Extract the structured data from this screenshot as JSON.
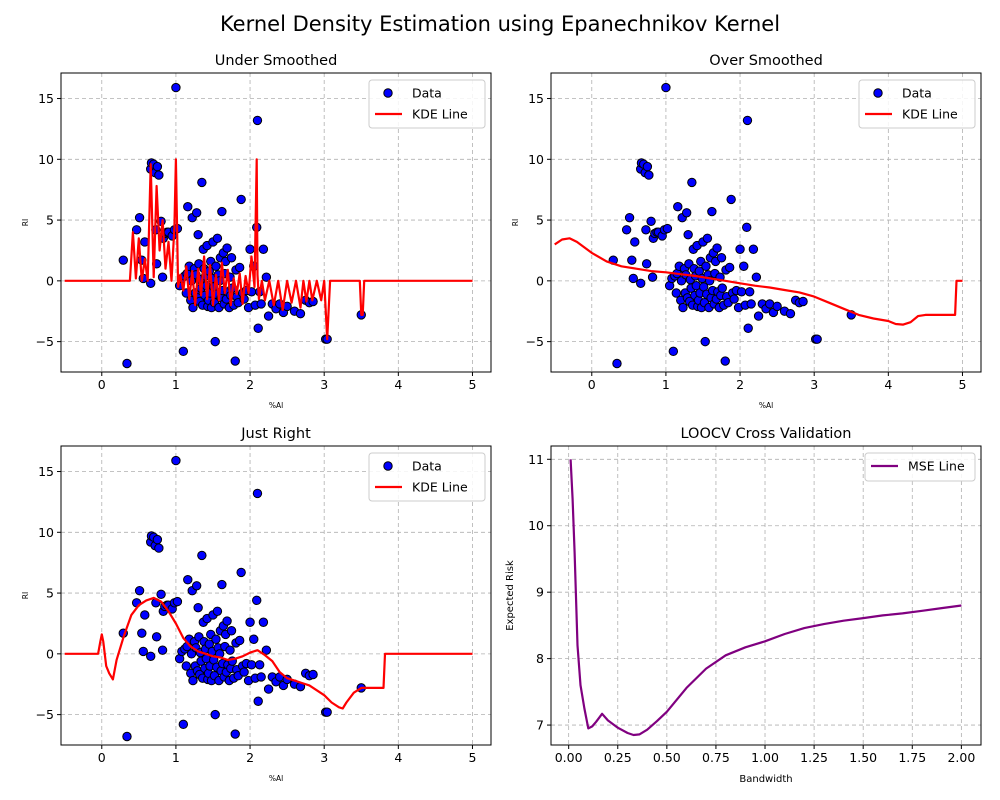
{
  "figure": {
    "suptitle": "Kernel Density Estimation using Epanechnikov Kernel"
  },
  "chart_data": [
    {
      "type": "scatter+line",
      "title": "Under Smoothed",
      "xlabel": "%Al",
      "ylabel": "RI",
      "xlim": [
        -0.55,
        5.25
      ],
      "ylim": [
        -7.5,
        17.1
      ],
      "xticks": [
        0,
        1,
        2,
        3,
        4,
        5
      ],
      "yticks": [
        -5,
        0,
        5,
        10,
        15
      ],
      "grid": true,
      "legend": {
        "position": "top-right",
        "entries": [
          "Data",
          "KDE Line"
        ]
      },
      "scatter": {
        "name": "Data",
        "points": [
          [
            0.29,
            1.7
          ],
          [
            0.34,
            -6.8
          ],
          [
            0.47,
            4.2
          ],
          [
            0.51,
            5.2
          ],
          [
            0.54,
            1.7
          ],
          [
            0.56,
            0.2
          ],
          [
            0.58,
            3.2
          ],
          [
            0.66,
            -0.2
          ],
          [
            0.66,
            9.2
          ],
          [
            0.67,
            9.7
          ],
          [
            0.7,
            9.6
          ],
          [
            0.72,
            8.9
          ],
          [
            0.75,
            9.4
          ],
          [
            0.77,
            8.7
          ],
          [
            0.73,
            4.2
          ],
          [
            0.74,
            1.4
          ],
          [
            0.8,
            4.9
          ],
          [
            0.82,
            0.3
          ],
          [
            0.83,
            3.5
          ],
          [
            0.85,
            3.9
          ],
          [
            0.88,
            4.0
          ],
          [
            0.9,
            4.0
          ],
          [
            0.95,
            3.7
          ],
          [
            0.98,
            4.2
          ],
          [
            1.0,
            15.9
          ],
          [
            1.02,
            4.3
          ],
          [
            1.05,
            -0.4
          ],
          [
            1.08,
            0.2
          ],
          [
            1.1,
            -5.8
          ],
          [
            1.12,
            0.4
          ],
          [
            1.14,
            -1.0
          ],
          [
            1.15,
            0.6
          ],
          [
            1.16,
            6.1
          ],
          [
            1.18,
            1.2
          ],
          [
            1.2,
            -1.6
          ],
          [
            1.21,
            0.0
          ],
          [
            1.22,
            5.2
          ],
          [
            1.23,
            -2.2
          ],
          [
            1.25,
            1.0
          ],
          [
            1.26,
            -1.0
          ],
          [
            1.27,
            0.5
          ],
          [
            1.28,
            5.6
          ],
          [
            1.29,
            -1.4
          ],
          [
            1.3,
            3.8
          ],
          [
            1.31,
            1.4
          ],
          [
            1.32,
            -1.7
          ],
          [
            1.33,
            0.1
          ],
          [
            1.34,
            -0.6
          ],
          [
            1.35,
            8.1
          ],
          [
            1.36,
            -2.0
          ],
          [
            1.37,
            2.6
          ],
          [
            1.38,
            1.0
          ],
          [
            1.39,
            -1.2
          ],
          [
            1.4,
            0.4
          ],
          [
            1.41,
            -0.4
          ],
          [
            1.42,
            2.9
          ],
          [
            1.43,
            -2.1
          ],
          [
            1.44,
            -1.6
          ],
          [
            1.45,
            0.8
          ],
          [
            1.46,
            -1.0
          ],
          [
            1.47,
            1.6
          ],
          [
            1.48,
            -2.2
          ],
          [
            1.49,
            0.2
          ],
          [
            1.5,
            3.2
          ],
          [
            1.51,
            -0.5
          ],
          [
            1.52,
            -1.8
          ],
          [
            1.53,
            -5.0
          ],
          [
            1.54,
            1.2
          ],
          [
            1.55,
            -1.1
          ],
          [
            1.56,
            3.5
          ],
          [
            1.57,
            0.5
          ],
          [
            1.58,
            -2.2
          ],
          [
            1.59,
            0.0
          ],
          [
            1.6,
            1.9
          ],
          [
            1.61,
            -1.4
          ],
          [
            1.62,
            5.7
          ],
          [
            1.63,
            -0.8
          ],
          [
            1.64,
            2.3
          ],
          [
            1.65,
            -1.9
          ],
          [
            1.66,
            0.6
          ],
          [
            1.67,
            1.6
          ],
          [
            1.68,
            -1.5
          ],
          [
            1.69,
            2.7
          ],
          [
            1.7,
            -0.9
          ],
          [
            1.72,
            -2.2
          ],
          [
            1.73,
            0.3
          ],
          [
            1.74,
            -1.2
          ],
          [
            1.75,
            1.9
          ],
          [
            1.76,
            -0.6
          ],
          [
            1.78,
            -2.0
          ],
          [
            1.8,
            -6.6
          ],
          [
            1.81,
            0.9
          ],
          [
            1.82,
            -1.3
          ],
          [
            1.84,
            -1.8
          ],
          [
            1.86,
            1.1
          ],
          [
            1.88,
            6.7
          ],
          [
            1.9,
            -1.0
          ],
          [
            1.92,
            -1.5
          ],
          [
            1.95,
            -0.8
          ],
          [
            1.98,
            -2.2
          ],
          [
            2.0,
            2.6
          ],
          [
            2.02,
            -0.9
          ],
          [
            2.05,
            1.2
          ],
          [
            2.07,
            -2.0
          ],
          [
            2.09,
            4.4
          ],
          [
            2.1,
            13.2
          ],
          [
            2.11,
            -3.9
          ],
          [
            2.13,
            -0.9
          ],
          [
            2.15,
            -1.9
          ],
          [
            2.18,
            2.6
          ],
          [
            2.22,
            0.3
          ],
          [
            2.25,
            -2.9
          ],
          [
            2.3,
            -1.9
          ],
          [
            2.35,
            -2.3
          ],
          [
            2.4,
            -1.9
          ],
          [
            2.45,
            -2.6
          ],
          [
            2.5,
            -2.1
          ],
          [
            2.6,
            -2.5
          ],
          [
            2.68,
            -2.7
          ],
          [
            2.75,
            -1.6
          ],
          [
            2.8,
            -1.8
          ],
          [
            2.85,
            -1.7
          ],
          [
            3.02,
            -4.8
          ],
          [
            3.04,
            -4.8
          ],
          [
            3.5,
            -2.8
          ]
        ]
      },
      "line": {
        "name": "KDE Line",
        "x": [
          -0.5,
          0.38,
          0.42,
          0.46,
          0.5,
          0.54,
          0.58,
          0.62,
          0.66,
          0.7,
          0.74,
          0.78,
          0.82,
          0.86,
          0.9,
          0.94,
          0.98,
          1.0,
          1.03,
          1.06,
          1.1,
          1.14,
          1.18,
          1.22,
          1.26,
          1.3,
          1.34,
          1.38,
          1.42,
          1.46,
          1.5,
          1.54,
          1.58,
          1.62,
          1.66,
          1.7,
          1.74,
          1.78,
          1.82,
          1.86,
          1.9,
          1.94,
          1.98,
          2.02,
          2.06,
          2.09,
          2.1,
          2.12,
          2.16,
          2.2,
          2.26,
          2.32,
          2.38,
          2.44,
          2.5,
          2.56,
          2.62,
          2.68,
          2.72,
          2.76,
          2.8,
          2.84,
          2.9,
          2.96,
          3.0,
          3.04,
          3.08,
          3.48,
          3.5,
          3.52,
          3.54,
          5.0
        ],
        "y": [
          0.0,
          0.0,
          4.0,
          0.2,
          3.5,
          0.0,
          1.8,
          0.0,
          9.6,
          0.3,
          7.8,
          2.5,
          5.0,
          1.0,
          3.2,
          0.0,
          4.4,
          10.0,
          -0.5,
          0.5,
          -0.8,
          1.2,
          -1.5,
          0.8,
          -2.0,
          1.0,
          -1.2,
          2.0,
          -1.5,
          1.3,
          -2.0,
          0.5,
          -1.6,
          1.5,
          -1.0,
          0.9,
          -2.0,
          0.2,
          -1.1,
          0.6,
          -1.9,
          0.4,
          -1.0,
          2.0,
          -0.5,
          10.0,
          0.5,
          -1.5,
          0.0,
          -1.6,
          0.0,
          -2.0,
          0.0,
          -2.4,
          0.0,
          -1.8,
          0.0,
          -2.2,
          0.0,
          -1.7,
          0.0,
          -1.6,
          0.0,
          -1.6,
          0.0,
          -4.8,
          0.0,
          0.0,
          -2.8,
          -2.8,
          0.0,
          0.0
        ]
      }
    },
    {
      "type": "scatter+line",
      "title": "Over Smoothed",
      "xlabel": "%Al",
      "ylabel": "RI",
      "xlim": [
        -0.55,
        5.25
      ],
      "ylim": [
        -7.5,
        17.1
      ],
      "xticks": [
        0,
        1,
        2,
        3,
        4,
        5
      ],
      "yticks": [
        -5,
        0,
        5,
        10,
        15
      ],
      "grid": true,
      "legend": {
        "position": "top-right",
        "entries": [
          "Data",
          "KDE Line"
        ]
      },
      "scatter": {
        "name": "Data",
        "points_ref": 0
      },
      "line": {
        "name": "KDE Line",
        "x": [
          -0.5,
          -0.4,
          -0.3,
          -0.2,
          0.0,
          0.2,
          0.4,
          0.6,
          0.8,
          1.0,
          1.2,
          1.4,
          1.6,
          1.8,
          2.0,
          2.2,
          2.4,
          2.6,
          2.8,
          3.0,
          3.2,
          3.4,
          3.6,
          3.8,
          4.0,
          4.1,
          4.2,
          4.3,
          4.4,
          4.5,
          4.9,
          4.92,
          5.0
        ],
        "y": [
          3.0,
          3.4,
          3.5,
          3.2,
          2.3,
          1.6,
          1.2,
          1.0,
          0.8,
          0.7,
          0.55,
          0.4,
          0.2,
          0.0,
          -0.2,
          -0.4,
          -0.55,
          -0.75,
          -0.95,
          -1.3,
          -1.8,
          -2.3,
          -2.8,
          -3.1,
          -3.3,
          -3.55,
          -3.6,
          -3.4,
          -2.9,
          -2.8,
          -2.8,
          0.0,
          0.0
        ]
      }
    },
    {
      "type": "scatter+line",
      "title": "Just Right",
      "xlabel": "%Al",
      "ylabel": "RI",
      "xlim": [
        -0.55,
        5.25
      ],
      "ylim": [
        -7.5,
        17.1
      ],
      "xticks": [
        0,
        1,
        2,
        3,
        4,
        5
      ],
      "yticks": [
        -5,
        0,
        5,
        10,
        15
      ],
      "grid": true,
      "legend": {
        "position": "top-right",
        "entries": [
          "Data",
          "KDE Line"
        ]
      },
      "scatter": {
        "name": "Data",
        "points_ref": 0
      },
      "line": {
        "name": "KDE Line",
        "x": [
          -0.5,
          -0.05,
          -0.02,
          0.0,
          0.02,
          0.06,
          0.1,
          0.15,
          0.2,
          0.3,
          0.4,
          0.5,
          0.6,
          0.7,
          0.8,
          0.9,
          1.0,
          1.1,
          1.2,
          1.3,
          1.4,
          1.5,
          1.6,
          1.7,
          1.8,
          1.9,
          2.0,
          2.1,
          2.2,
          2.3,
          2.4,
          2.5,
          2.6,
          2.7,
          2.8,
          2.9,
          3.0,
          3.1,
          3.2,
          3.25,
          3.3,
          3.4,
          3.5,
          3.8,
          3.82,
          5.0
        ],
        "y": [
          0.0,
          0.0,
          1.0,
          1.6,
          1.0,
          -1.0,
          -1.6,
          -2.1,
          -0.5,
          1.5,
          3.2,
          4.0,
          4.4,
          4.6,
          4.3,
          3.5,
          2.5,
          1.3,
          0.6,
          0.2,
          0.0,
          -0.2,
          -0.3,
          -0.5,
          -0.4,
          -0.2,
          0.1,
          0.3,
          -0.1,
          -0.6,
          -1.5,
          -2.0,
          -2.2,
          -2.4,
          -2.6,
          -3.0,
          -3.4,
          -4.0,
          -4.4,
          -4.5,
          -4.0,
          -3.2,
          -2.8,
          -2.8,
          0.0,
          0.0
        ]
      }
    },
    {
      "type": "line",
      "title": "LOOCV Cross Validation",
      "xlabel": "Bandwidth",
      "ylabel": "Expected Risk",
      "xlim": [
        -0.09,
        2.1
      ],
      "ylim": [
        6.7,
        11.2
      ],
      "xticks": [
        0.0,
        0.25,
        0.5,
        0.75,
        1.0,
        1.25,
        1.5,
        1.75,
        2.0
      ],
      "xtick_labels": [
        "0.00",
        "0.25",
        "0.50",
        "0.75",
        "1.00",
        "1.25",
        "1.50",
        "1.75",
        "2.00"
      ],
      "yticks": [
        7,
        8,
        9,
        10,
        11
      ],
      "grid": true,
      "legend": {
        "position": "top-right",
        "entries": [
          "MSE Line"
        ]
      },
      "line": {
        "name": "MSE Line",
        "x": [
          0.01,
          0.02,
          0.03,
          0.045,
          0.06,
          0.08,
          0.1,
          0.12,
          0.14,
          0.17,
          0.2,
          0.25,
          0.3,
          0.33,
          0.36,
          0.4,
          0.45,
          0.5,
          0.6,
          0.7,
          0.8,
          0.9,
          1.0,
          1.1,
          1.2,
          1.3,
          1.4,
          1.5,
          1.6,
          1.7,
          1.8,
          1.9,
          2.0
        ],
        "y": [
          11.0,
          10.4,
          9.6,
          8.2,
          7.6,
          7.25,
          6.95,
          6.98,
          7.05,
          7.17,
          7.07,
          6.96,
          6.88,
          6.85,
          6.86,
          6.93,
          7.06,
          7.2,
          7.56,
          7.85,
          8.05,
          8.17,
          8.26,
          8.37,
          8.46,
          8.52,
          8.57,
          8.61,
          8.65,
          8.68,
          8.72,
          8.76,
          8.8
        ]
      }
    }
  ]
}
